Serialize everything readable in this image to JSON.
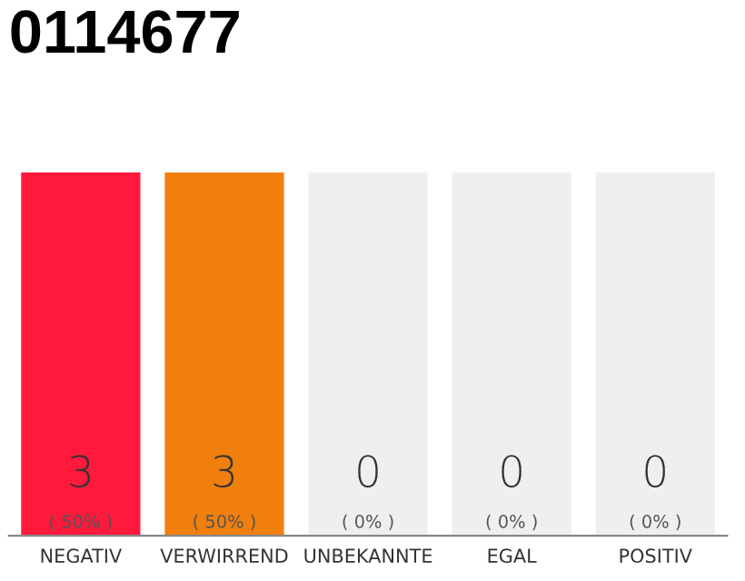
{
  "chart_data": {
    "type": "bar",
    "title": "0114677",
    "categories": [
      "NEGATIV",
      "VERWIRREND",
      "UNBEKANNTE",
      "EGAL",
      "POSITIV"
    ],
    "ylim": [
      0,
      3
    ],
    "tick_labels": "x",
    "grid": false,
    "series": [
      {
        "colors": [
          "#ff1a3c",
          "#f17f0d",
          "#efefef",
          "#efefef",
          "#efefef"
        ],
        "values": [
          3,
          3,
          0,
          0,
          0
        ],
        "value_labels": [
          "3\n( 50% )",
          "3\n( 50% )",
          "0\n( 0% )",
          "0\n( 0% )",
          "0\n( 0% )"
        ]
      },
      {
        "color": "#efefef",
        "values": [
          0,
          0,
          3,
          3,
          3
        ]
      }
    ]
  }
}
